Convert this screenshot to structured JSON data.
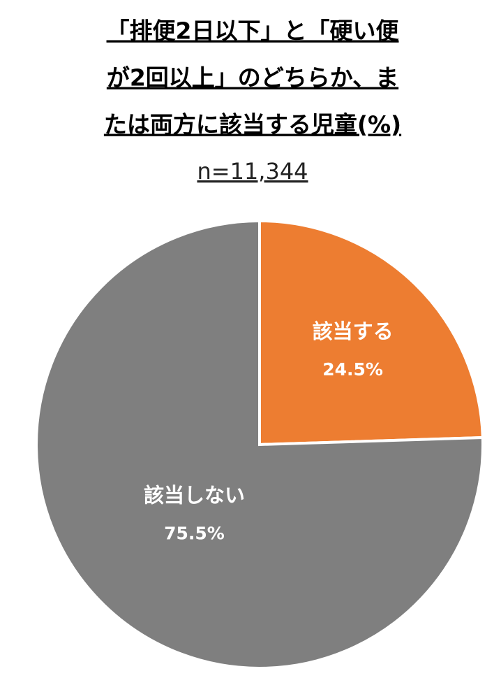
{
  "chart_data": {
    "type": "pie",
    "title": [
      "「排便2日以下」と「硬い便",
      "が2回以上」のどちらか、ま",
      "たは両方に該当する児童(%)"
    ],
    "subtitle": "n=11,344",
    "categories": [
      "該当する",
      "該当しない"
    ],
    "values": [
      24.5,
      75.5
    ],
    "value_labels": [
      "24.5%",
      "75.5%"
    ],
    "colors": [
      "#ED7D31",
      "#7F7F7F"
    ]
  }
}
